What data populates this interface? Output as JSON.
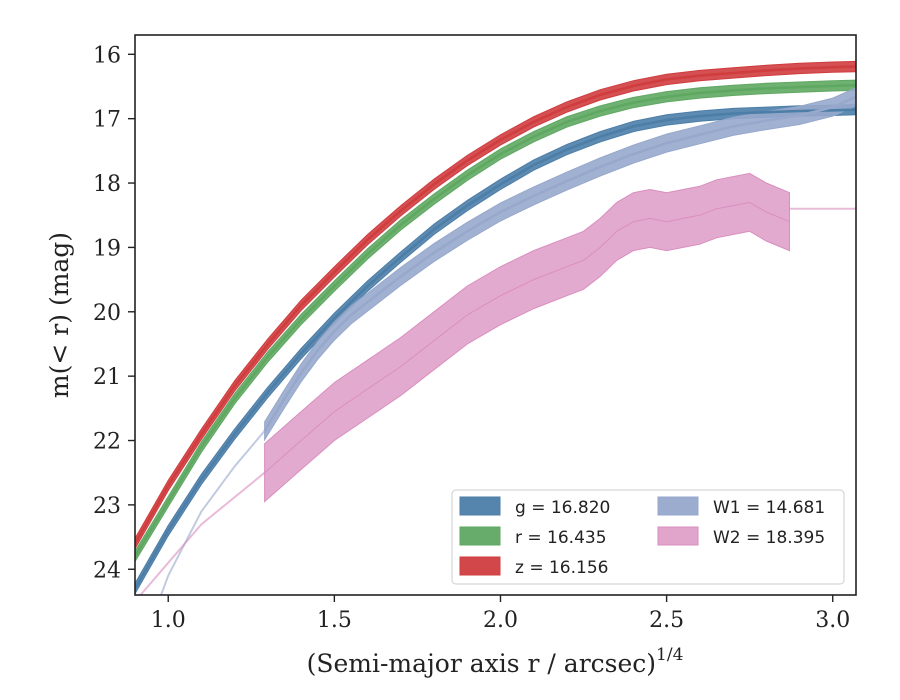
{
  "chart_data": {
    "type": "line",
    "xlabel": "(Semi-major axis r / arcsec)",
    "xlabel_italic_var": "r",
    "xlabel_exponent": "1/4",
    "ylabel": "m(< r) (mag)",
    "xlim": [
      0.9,
      3.07
    ],
    "ylim": [
      24.4,
      15.7
    ],
    "y_inverted": true,
    "xticks": [
      1.0,
      1.5,
      2.0,
      2.5,
      3.0
    ],
    "xtick_labels": [
      "1.0",
      "1.5",
      "2.0",
      "2.5",
      "3.0"
    ],
    "yticks": [
      16,
      17,
      18,
      19,
      20,
      21,
      22,
      23,
      24
    ],
    "ytick_labels": [
      "16",
      "17",
      "18",
      "19",
      "20",
      "21",
      "22",
      "23",
      "24"
    ],
    "grid": false,
    "legend_position": "lower-right",
    "series": [
      {
        "name": "g",
        "legend_label": "g = 16.820",
        "total_mag": 16.82,
        "color": "#4c7ea8",
        "band": true,
        "data_points": [
          [
            0.9,
            24.3
          ],
          [
            1.0,
            23.4
          ],
          [
            1.1,
            22.6
          ],
          [
            1.2,
            21.9
          ],
          [
            1.3,
            21.25
          ],
          [
            1.4,
            20.65
          ],
          [
            1.5,
            20.1
          ],
          [
            1.6,
            19.6
          ],
          [
            1.7,
            19.15
          ],
          [
            1.8,
            18.72
          ],
          [
            1.9,
            18.35
          ],
          [
            2.0,
            18.02
          ],
          [
            2.1,
            17.72
          ],
          [
            2.2,
            17.48
          ],
          [
            2.3,
            17.28
          ],
          [
            2.4,
            17.12
          ],
          [
            2.5,
            17.02
          ],
          [
            2.6,
            16.96
          ],
          [
            2.7,
            16.92
          ],
          [
            2.8,
            16.9
          ],
          [
            2.9,
            16.88
          ],
          [
            3.0,
            16.87
          ],
          [
            3.07,
            16.86
          ]
        ]
      },
      {
        "name": "r",
        "legend_label": "r = 16.435",
        "total_mag": 16.435,
        "color": "#5fa862",
        "band": true,
        "data_points": [
          [
            0.9,
            23.8
          ],
          [
            1.0,
            22.95
          ],
          [
            1.1,
            22.1
          ],
          [
            1.2,
            21.35
          ],
          [
            1.3,
            20.7
          ],
          [
            1.4,
            20.12
          ],
          [
            1.5,
            19.6
          ],
          [
            1.6,
            19.1
          ],
          [
            1.7,
            18.65
          ],
          [
            1.8,
            18.25
          ],
          [
            1.9,
            17.88
          ],
          [
            2.0,
            17.55
          ],
          [
            2.1,
            17.28
          ],
          [
            2.2,
            17.05
          ],
          [
            2.3,
            16.88
          ],
          [
            2.4,
            16.75
          ],
          [
            2.5,
            16.66
          ],
          [
            2.6,
            16.6
          ],
          [
            2.7,
            16.56
          ],
          [
            2.8,
            16.53
          ],
          [
            2.9,
            16.51
          ],
          [
            3.0,
            16.49
          ],
          [
            3.07,
            16.48
          ]
        ]
      },
      {
        "name": "z",
        "legend_label": "z = 16.156",
        "total_mag": 16.156,
        "color": "#d03d3f",
        "band": true,
        "data_points": [
          [
            0.9,
            23.6
          ],
          [
            1.0,
            22.7
          ],
          [
            1.1,
            21.9
          ],
          [
            1.2,
            21.15
          ],
          [
            1.3,
            20.5
          ],
          [
            1.4,
            19.9
          ],
          [
            1.5,
            19.38
          ],
          [
            1.6,
            18.88
          ],
          [
            1.7,
            18.43
          ],
          [
            1.8,
            18.02
          ],
          [
            1.9,
            17.65
          ],
          [
            2.0,
            17.33
          ],
          [
            2.1,
            17.05
          ],
          [
            2.2,
            16.82
          ],
          [
            2.3,
            16.63
          ],
          [
            2.4,
            16.49
          ],
          [
            2.5,
            16.39
          ],
          [
            2.6,
            16.33
          ],
          [
            2.7,
            16.29
          ],
          [
            2.8,
            16.25
          ],
          [
            2.9,
            16.22
          ],
          [
            3.0,
            16.2
          ],
          [
            3.07,
            16.19
          ]
        ]
      },
      {
        "name": "W1",
        "legend_label": "W1 = 14.681",
        "total_mag": 14.681,
        "color": "#97a8cc",
        "band": true,
        "data_points": [
          [
            1.29,
            21.85
          ],
          [
            1.35,
            21.35
          ],
          [
            1.4,
            20.95
          ],
          [
            1.45,
            20.6
          ],
          [
            1.5,
            20.3
          ],
          [
            1.55,
            20.05
          ],
          [
            1.6,
            19.85
          ],
          [
            1.7,
            19.45
          ],
          [
            1.8,
            19.08
          ],
          [
            1.9,
            18.75
          ],
          [
            2.0,
            18.45
          ],
          [
            2.1,
            18.2
          ],
          [
            2.2,
            17.97
          ],
          [
            2.3,
            17.75
          ],
          [
            2.4,
            17.55
          ],
          [
            2.5,
            17.38
          ],
          [
            2.6,
            17.25
          ],
          [
            2.7,
            17.12
          ],
          [
            2.8,
            17.03
          ],
          [
            2.9,
            16.95
          ],
          [
            3.0,
            16.82
          ],
          [
            3.07,
            16.66
          ]
        ]
      },
      {
        "name": "W2",
        "legend_label": "W2 = 18.395",
        "total_mag": 18.395,
        "color": "#d98ebf",
        "band": true,
        "data_points": [
          [
            1.29,
            22.5
          ],
          [
            1.4,
            22.0
          ],
          [
            1.5,
            21.55
          ],
          [
            1.6,
            21.2
          ],
          [
            1.7,
            20.85
          ],
          [
            1.8,
            20.45
          ],
          [
            1.9,
            20.05
          ],
          [
            2.0,
            19.75
          ],
          [
            2.1,
            19.5
          ],
          [
            2.2,
            19.3
          ],
          [
            2.25,
            19.2
          ],
          [
            2.3,
            19.0
          ],
          [
            2.35,
            18.75
          ],
          [
            2.4,
            18.6
          ],
          [
            2.45,
            18.55
          ],
          [
            2.5,
            18.6
          ],
          [
            2.55,
            18.55
          ],
          [
            2.6,
            18.5
          ],
          [
            2.65,
            18.4
          ],
          [
            2.7,
            18.35
          ],
          [
            2.75,
            18.3
          ],
          [
            2.8,
            18.45
          ],
          [
            2.87,
            18.6
          ]
        ]
      }
    ]
  }
}
